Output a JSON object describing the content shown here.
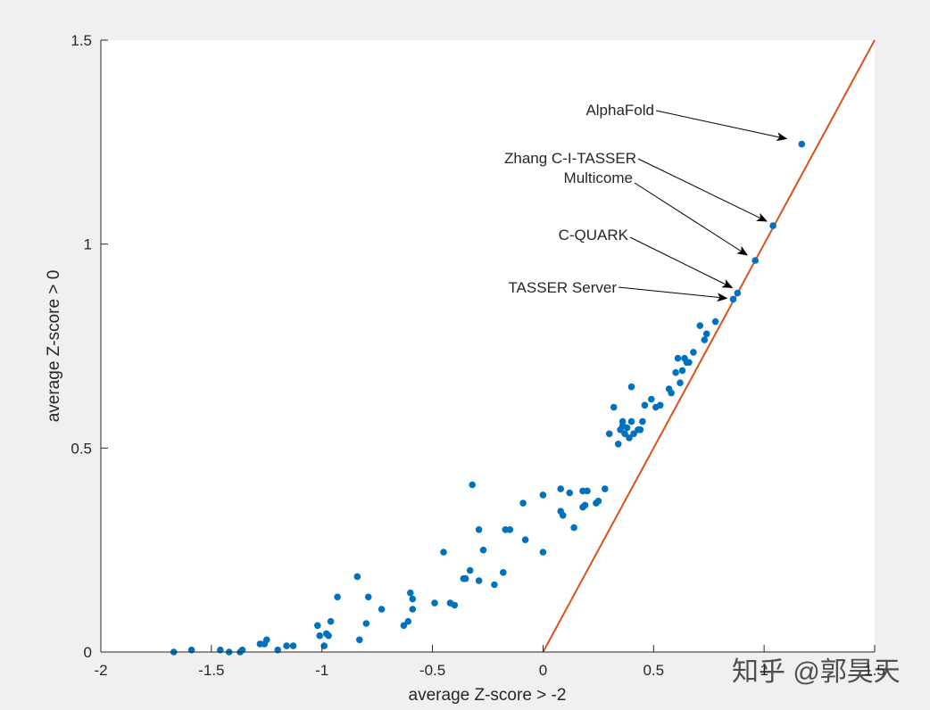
{
  "chart_data": {
    "type": "scatter",
    "title": "",
    "xlabel": "average Z-score > -2",
    "ylabel": "average Z-score > 0",
    "xlim": [
      -2,
      1.5
    ],
    "ylim": [
      0,
      1.5
    ],
    "xticks": [
      -2,
      -1.5,
      -1,
      -0.5,
      0,
      0.5,
      1,
      1.5
    ],
    "xtick_labels": [
      "-2",
      "-1.5",
      "-1",
      "-0.5",
      "0",
      "0.5",
      "1",
      "1.5"
    ],
    "yticks": [
      0,
      0.5,
      1,
      1.5
    ],
    "ytick_labels": [
      "0",
      "0.5",
      "1",
      "1.5"
    ],
    "grid": false,
    "marker_color": "#0072BD",
    "line_color": "#D95319",
    "reference_line": {
      "x": [
        0,
        1.5
      ],
      "y": [
        0,
        1.5
      ]
    },
    "points": [
      [
        -1.67,
        0.0
      ],
      [
        -1.59,
        0.005
      ],
      [
        -1.46,
        0.005
      ],
      [
        -1.42,
        0.0
      ],
      [
        -1.37,
        0.0
      ],
      [
        -1.36,
        0.005
      ],
      [
        -1.28,
        0.02
      ],
      [
        -1.26,
        0.02
      ],
      [
        -1.25,
        0.03
      ],
      [
        -1.2,
        0.005
      ],
      [
        -1.16,
        0.015
      ],
      [
        -1.13,
        0.015
      ],
      [
        -1.02,
        0.065
      ],
      [
        -1.01,
        0.04
      ],
      [
        -0.99,
        0.015
      ],
      [
        -0.98,
        0.045
      ],
      [
        -0.97,
        0.04
      ],
      [
        -0.96,
        0.075
      ],
      [
        -0.93,
        0.135
      ],
      [
        -0.84,
        0.185
      ],
      [
        -0.83,
        0.03
      ],
      [
        -0.8,
        0.07
      ],
      [
        -0.79,
        0.135
      ],
      [
        -0.73,
        0.105
      ],
      [
        -0.63,
        0.065
      ],
      [
        -0.61,
        0.075
      ],
      [
        -0.6,
        0.145
      ],
      [
        -0.59,
        0.13
      ],
      [
        -0.59,
        0.105
      ],
      [
        -0.49,
        0.12
      ],
      [
        -0.45,
        0.245
      ],
      [
        -0.42,
        0.12
      ],
      [
        -0.4,
        0.115
      ],
      [
        -0.36,
        0.18
      ],
      [
        -0.35,
        0.18
      ],
      [
        -0.33,
        0.2
      ],
      [
        -0.32,
        0.41
      ],
      [
        -0.29,
        0.175
      ],
      [
        -0.29,
        0.3
      ],
      [
        -0.27,
        0.25
      ],
      [
        -0.22,
        0.165
      ],
      [
        -0.18,
        0.195
      ],
      [
        -0.17,
        0.3
      ],
      [
        -0.15,
        0.3
      ],
      [
        -0.09,
        0.365
      ],
      [
        -0.08,
        0.275
      ],
      [
        0.0,
        0.385
      ],
      [
        0.0,
        0.245
      ],
      [
        0.08,
        0.345
      ],
      [
        0.09,
        0.335
      ],
      [
        0.08,
        0.4
      ],
      [
        0.12,
        0.39
      ],
      [
        0.14,
        0.305
      ],
      [
        0.18,
        0.395
      ],
      [
        0.18,
        0.355
      ],
      [
        0.19,
        0.36
      ],
      [
        0.2,
        0.395
      ],
      [
        0.24,
        0.365
      ],
      [
        0.25,
        0.37
      ],
      [
        0.28,
        0.4
      ],
      [
        0.3,
        0.535
      ],
      [
        0.32,
        0.6
      ],
      [
        0.34,
        0.51
      ],
      [
        0.35,
        0.545
      ],
      [
        0.36,
        0.565
      ],
      [
        0.36,
        0.555
      ],
      [
        0.37,
        0.535
      ],
      [
        0.38,
        0.55
      ],
      [
        0.39,
        0.525
      ],
      [
        0.4,
        0.565
      ],
      [
        0.4,
        0.65
      ],
      [
        0.41,
        0.535
      ],
      [
        0.43,
        0.545
      ],
      [
        0.44,
        0.545
      ],
      [
        0.45,
        0.565
      ],
      [
        0.46,
        0.605
      ],
      [
        0.49,
        0.62
      ],
      [
        0.51,
        0.6
      ],
      [
        0.53,
        0.605
      ],
      [
        0.57,
        0.645
      ],
      [
        0.58,
        0.635
      ],
      [
        0.6,
        0.685
      ],
      [
        0.61,
        0.72
      ],
      [
        0.62,
        0.66
      ],
      [
        0.63,
        0.69
      ],
      [
        0.64,
        0.72
      ],
      [
        0.65,
        0.71
      ],
      [
        0.66,
        0.71
      ],
      [
        0.68,
        0.735
      ],
      [
        0.71,
        0.8
      ],
      [
        0.73,
        0.765
      ],
      [
        0.74,
        0.78
      ],
      [
        0.78,
        0.81
      ],
      [
        0.86,
        0.865
      ],
      [
        0.88,
        0.88
      ],
      [
        0.96,
        0.96
      ],
      [
        1.04,
        1.045
      ],
      [
        1.17,
        1.245
      ]
    ],
    "annotations": [
      {
        "text": "AlphaFold",
        "point": [
          1.17,
          1.245
        ]
      },
      {
        "text": "Zhang C-I-TASSER",
        "point": [
          1.04,
          1.045
        ]
      },
      {
        "text": "Multicome",
        "point": [
          0.96,
          0.96
        ]
      },
      {
        "text": "C-QUARK",
        "point": [
          0.88,
          0.88
        ]
      },
      {
        "text": "TASSER Server",
        "point": [
          0.86,
          0.865
        ]
      }
    ]
  },
  "watermark": "知乎 @郭昊天"
}
